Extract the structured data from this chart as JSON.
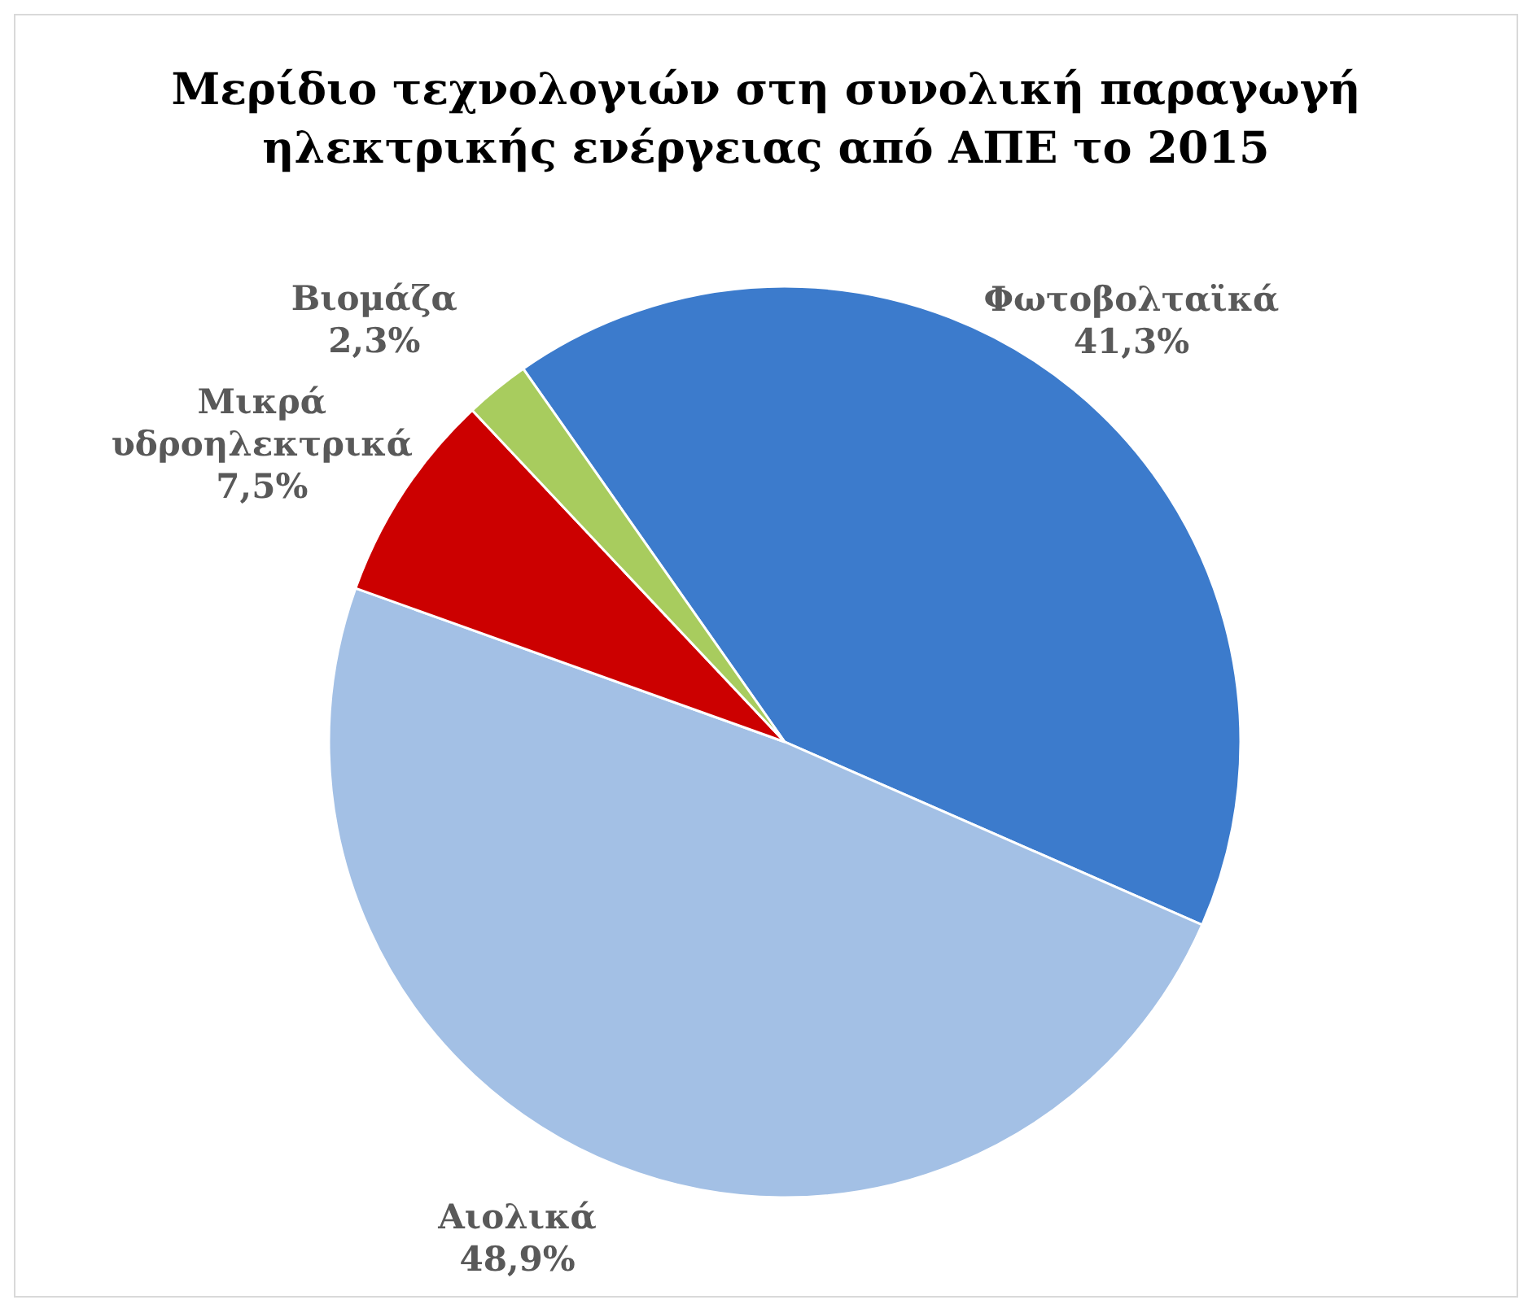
{
  "chart_data": {
    "type": "pie",
    "title": "Μερίδιο τεχνολογιών στη συνολική παραγωγή ηλεκτρικής ενέργειας από ΑΠΕ το 2015",
    "categories": [
      "Φωτοβολταϊκά",
      "Αιολικά",
      "Μικρά υδροηλεκτρικά",
      "Βιομάζα"
    ],
    "values": [
      41.3,
      48.9,
      7.5,
      2.3
    ],
    "colors": [
      "#3c7bcc",
      "#a3c0e5",
      "#cc0000",
      "#a8cc5e"
    ],
    "value_labels": [
      "41,3%",
      "48,9%",
      "7,5%",
      "2,3%"
    ]
  }
}
